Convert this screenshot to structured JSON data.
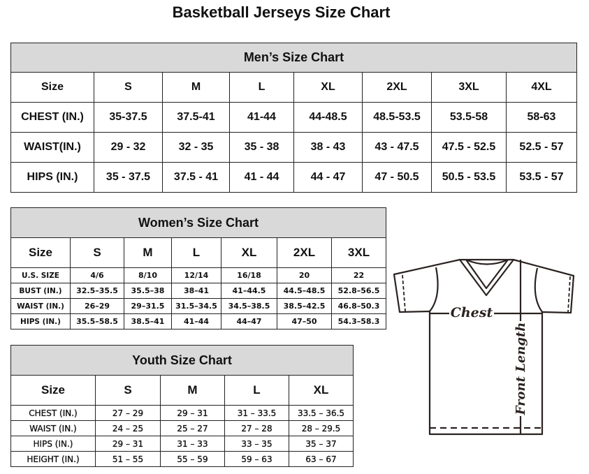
{
  "title": "Basketball Jerseys Size Chart",
  "men": {
    "caption": "Men’s Size Chart",
    "header": [
      "Size",
      "S",
      "M",
      "L",
      "XL",
      "2XL",
      "3XL",
      "4XL"
    ],
    "rows": [
      [
        "CHEST (IN.)",
        "35-37.5",
        "37.5-41",
        "41-44",
        "44-48.5",
        "48.5-53.5",
        "53.5-58",
        "58-63"
      ],
      [
        "WAIST(IN.)",
        "29 - 32",
        "32 - 35",
        "35 - 38",
        "38 - 43",
        "43 - 47.5",
        "47.5 - 52.5",
        "52.5 - 57"
      ],
      [
        "HIPS (IN.)",
        "35 - 37.5",
        "37.5 - 41",
        "41 - 44",
        "44 - 47",
        "47 - 50.5",
        "50.5 - 53.5",
        "53.5 - 57"
      ]
    ]
  },
  "women": {
    "caption": "Women’s Size Chart",
    "header": [
      "Size",
      "S",
      "M",
      "L",
      "XL",
      "2XL",
      "3XL"
    ],
    "rows": [
      [
        "U.S.  SIZE",
        "4/6",
        "8/10",
        "12/14",
        "16/18",
        "20",
        "22"
      ],
      [
        "BUST  (IN.)",
        "32.5–35.5",
        "35.5–38",
        "38–41",
        "41–44.5",
        "44.5–48.5",
        "52.8–56.5"
      ],
      [
        "WAIST  (IN.)",
        "26–29",
        "29–31.5",
        "31.5–34.5",
        "34.5–38.5",
        "38.5–42.5",
        "46.8–50.3"
      ],
      [
        "HIPS  (IN.)",
        "35.5–58.5",
        "38.5–41",
        "41–44",
        "44–47",
        "47–50",
        "54.3–58.3"
      ]
    ]
  },
  "youth": {
    "caption": "Youth Size Chart",
    "header": [
      "Size",
      "S",
      "M",
      "L",
      "XL"
    ],
    "rows": [
      [
        "CHEST  (IN.)",
        "27  –  29",
        "29  –  31",
        "31  –  33.5",
        "33.5  –  36.5"
      ],
      [
        "WAIST  (IN.)",
        "24  –  25",
        "25  –  27",
        "27  –  28",
        "28  –  29.5"
      ],
      [
        "HIPS  (IN.)",
        "29  –  31",
        "31  –  33",
        "33  –  35",
        "35  –  37"
      ],
      [
        "HEIGHT  (IN.)",
        "51  –  55",
        "55  –  59",
        "59  –  63",
        "63  –  67"
      ]
    ]
  },
  "diagram": {
    "chest_label": "Chest",
    "length_label": "Front Length"
  },
  "colors": {
    "caption_bg": "#d9d9d9",
    "line": "#2a2220"
  }
}
